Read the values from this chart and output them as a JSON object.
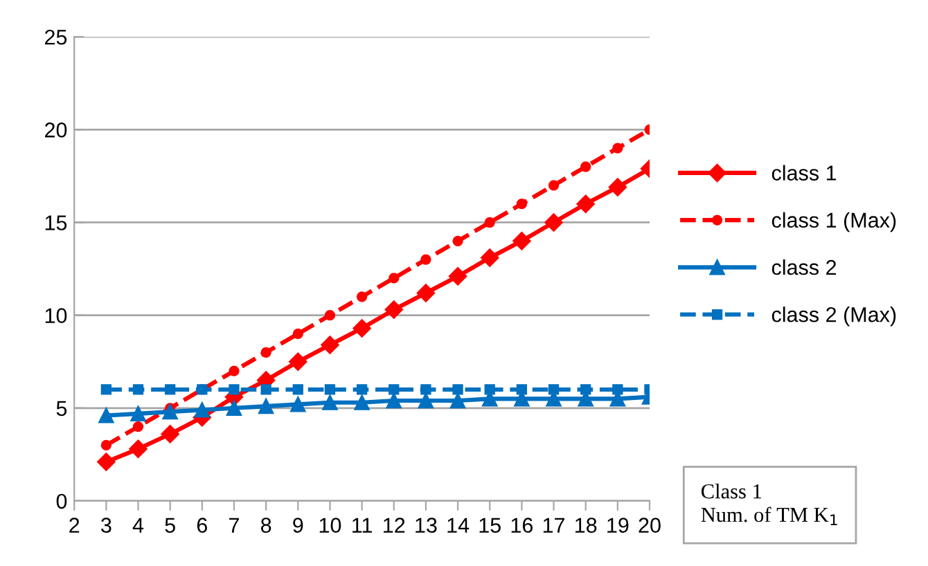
{
  "chart_data": {
    "type": "line",
    "x": [
      3,
      4,
      5,
      6,
      7,
      8,
      9,
      10,
      11,
      12,
      13,
      14,
      15,
      16,
      17,
      18,
      19,
      20
    ],
    "series": [
      {
        "name": "class 1",
        "color": "#ff0000",
        "marker": "diamond",
        "line_style": "solid",
        "values": [
          2.1,
          2.8,
          3.6,
          4.5,
          5.6,
          6.5,
          7.5,
          8.4,
          9.3,
          10.3,
          11.2,
          12.1,
          13.1,
          14.0,
          15.0,
          16.0,
          16.9,
          17.9
        ]
      },
      {
        "name": "class 1 (Max)",
        "color": "#ff0000",
        "marker": "circle",
        "line_style": "dashed",
        "values": [
          3,
          4,
          5,
          6,
          7,
          8,
          9,
          10,
          11,
          12,
          13,
          14,
          15,
          16,
          17,
          18,
          19,
          20
        ]
      },
      {
        "name": "class 2",
        "color": "#0070c0",
        "marker": "triangle",
        "line_style": "solid",
        "values": [
          4.6,
          4.7,
          4.8,
          4.9,
          5.0,
          5.1,
          5.2,
          5.3,
          5.3,
          5.4,
          5.4,
          5.4,
          5.5,
          5.5,
          5.5,
          5.5,
          5.5,
          5.6
        ]
      },
      {
        "name": "class 2 (Max)",
        "color": "#0070c0",
        "marker": "square",
        "line_style": "dashed",
        "values": [
          6,
          6,
          6,
          6,
          6,
          6,
          6,
          6,
          6,
          6,
          6,
          6,
          6,
          6,
          6,
          6,
          6,
          6
        ]
      }
    ],
    "xlim": [
      2,
      20
    ],
    "xticks": [
      2,
      3,
      4,
      5,
      6,
      7,
      8,
      9,
      10,
      11,
      12,
      13,
      14,
      15,
      16,
      17,
      18,
      19,
      20
    ],
    "ylim": [
      0,
      25
    ],
    "yticks": [
      0,
      5,
      10,
      15,
      20,
      25
    ],
    "grid": "y",
    "legend": "right",
    "annotations": [
      "Class 1\nNum. of TM K$_{1}$"
    ]
  }
}
